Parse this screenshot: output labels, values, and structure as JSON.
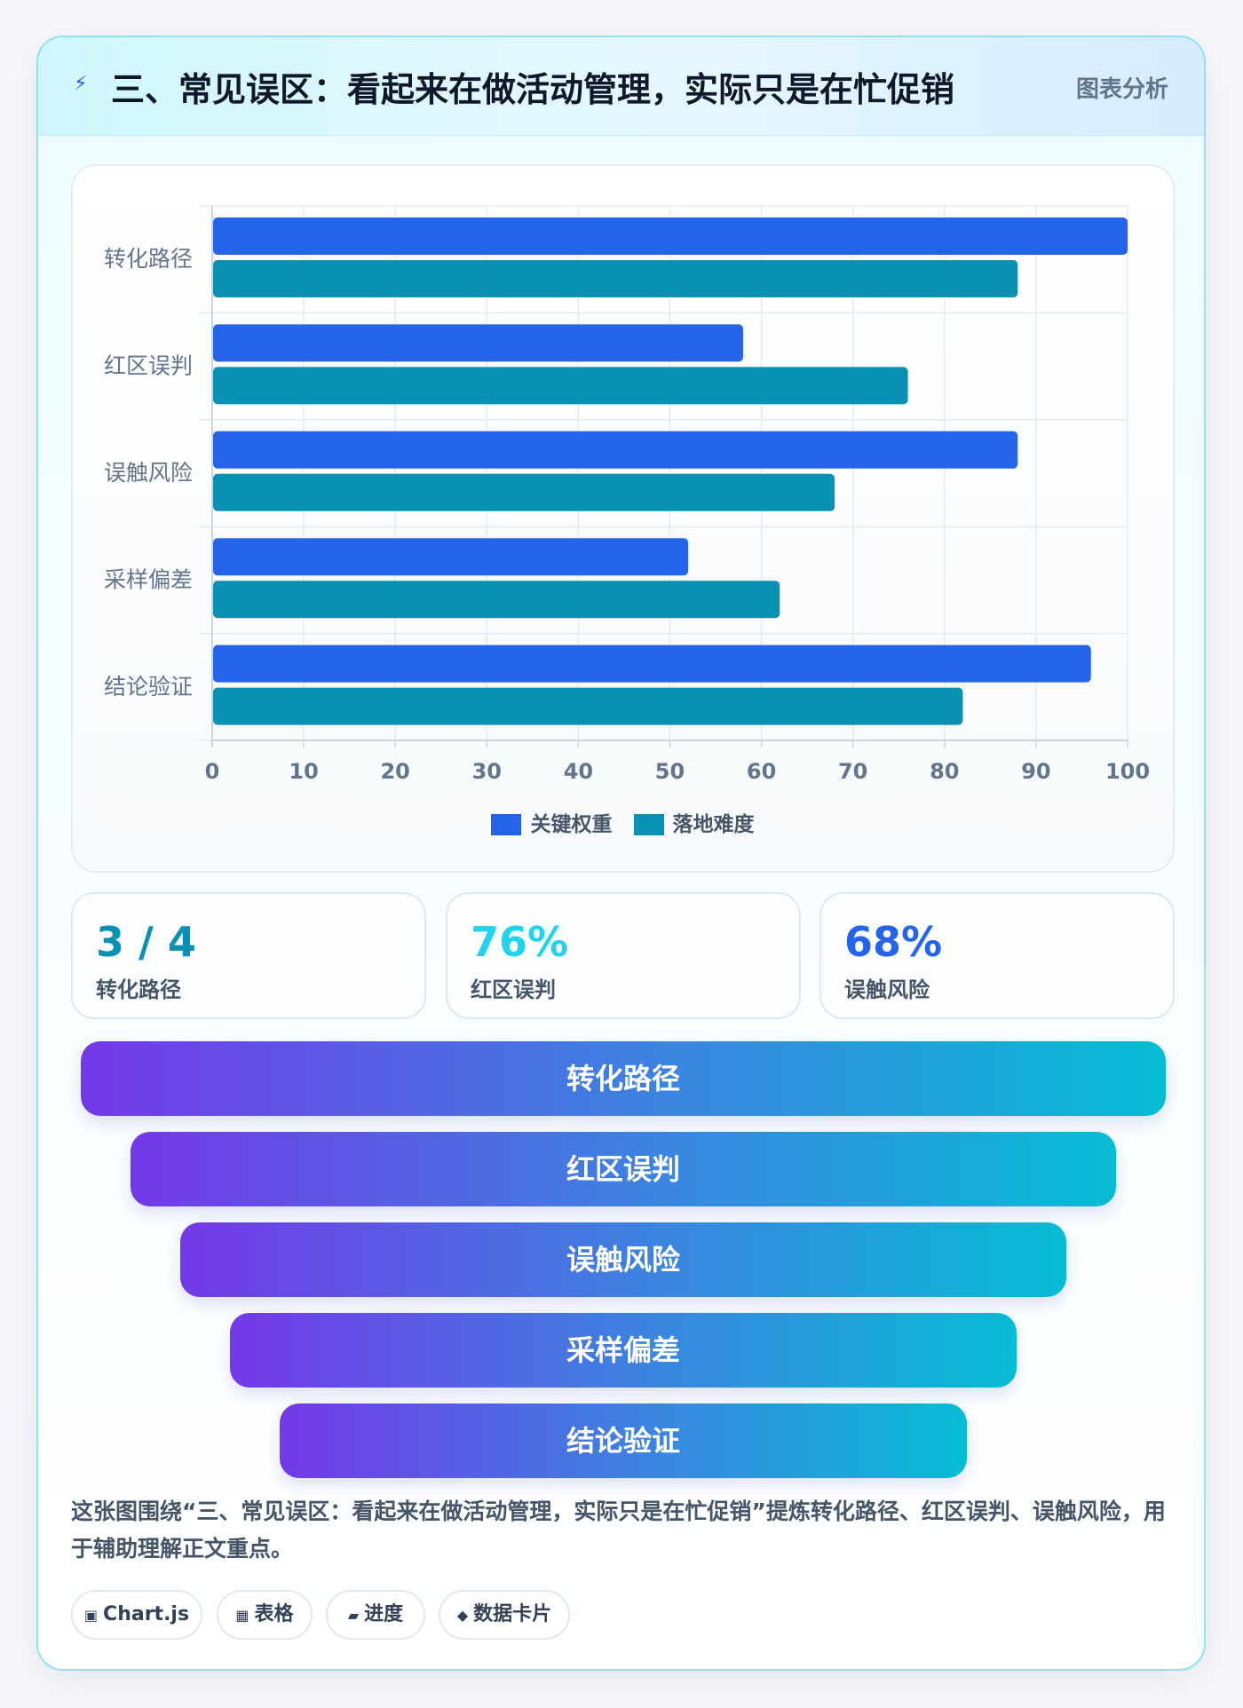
{
  "header": {
    "icon": "bolt-icon",
    "title": "三、常见误区：看起来在做活动管理，实际只是在忙促销",
    "tag": "图表分析"
  },
  "chart_data": {
    "type": "bar",
    "orientation": "horizontal",
    "categories": [
      "转化路径",
      "红区误判",
      "误触风险",
      "采样偏差",
      "结论验证"
    ],
    "series": [
      {
        "name": "关键权重",
        "values": [
          100,
          58,
          88,
          52,
          96
        ],
        "color": "#2563eb"
      },
      {
        "name": "落地难度",
        "values": [
          88,
          76,
          68,
          62,
          82
        ],
        "color": "#0891b2"
      }
    ],
    "xlim": [
      0,
      100
    ],
    "xticks": [
      0,
      10,
      20,
      30,
      40,
      50,
      60,
      70,
      80,
      90,
      100
    ],
    "grid": true,
    "legend": "bottom"
  },
  "stats": [
    {
      "value": "3 / 4",
      "label": "转化路径",
      "color": "#0891b2"
    },
    {
      "value": "76%",
      "label": "红区误判",
      "color": "#22d3ee"
    },
    {
      "value": "68%",
      "label": "误触风险",
      "color": "#2563eb"
    }
  ],
  "funnel": [
    "转化路径",
    "红区误判",
    "误触风险",
    "采样偏差",
    "结论验证"
  ],
  "caption": "这张图围绕“三、常见误区：看起来在做活动管理，实际只是在忙促销”提炼转化路径、红区误判、误触风险，用于辅助理解正文重点。",
  "chips": [
    {
      "icon": "▣",
      "label": "Chart.js"
    },
    {
      "icon": "▦",
      "label": "表格"
    },
    {
      "icon": "▰",
      "label": "进度"
    },
    {
      "icon": "◆",
      "label": "数据卡片"
    }
  ]
}
